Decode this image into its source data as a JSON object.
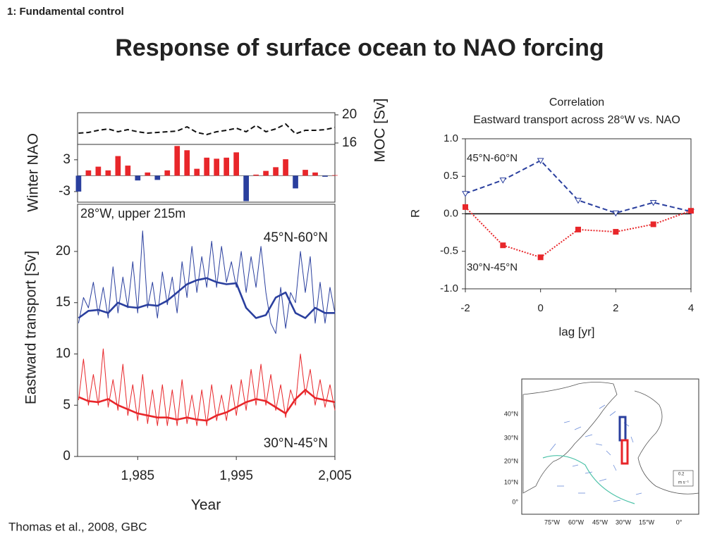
{
  "header": {
    "section": "1: Fundamental control",
    "title": "Response of surface ocean to NAO forcing"
  },
  "citation": "Thomas et al., 2008, GBC",
  "chart_data": [
    {
      "type": "line",
      "y_label": "MOC [Sv]",
      "x": [
        1979,
        1980,
        1981,
        1982,
        1983,
        1984,
        1985,
        1986,
        1987,
        1988,
        1989,
        1990,
        1991,
        1992,
        1993,
        1994,
        1995,
        1996,
        1997,
        1998,
        1999,
        2000,
        2001,
        2002,
        2003,
        2004,
        2005
      ],
      "xlim": [
        1978.9,
        2005
      ],
      "ylim": [
        15.8,
        20.3
      ],
      "yticks": [
        16,
        20
      ],
      "series": [
        {
          "color": "#111111",
          "dash": true,
          "values": [
            17.4,
            17.5,
            17.8,
            18.0,
            17.6,
            17.9,
            17.6,
            17.4,
            17.5,
            17.6,
            17.7,
            18.3,
            17.5,
            17.2,
            17.6,
            17.8,
            18.1,
            17.6,
            18.5,
            17.6,
            18.0,
            18.7,
            17.3,
            17.8,
            17.8,
            17.9,
            18.2
          ]
        }
      ]
    },
    {
      "type": "bar",
      "y_label": "Winter NAO",
      "x": [
        1979,
        1980,
        1981,
        1982,
        1983,
        1984,
        1985,
        1986,
        1987,
        1988,
        1989,
        1990,
        1991,
        1992,
        1993,
        1994,
        1995,
        1996,
        1997,
        1998,
        1999,
        2000,
        2001,
        2002,
        2003,
        2004,
        2005
      ],
      "values": [
        -3.0,
        1.0,
        1.7,
        1.0,
        3.7,
        1.9,
        -0.9,
        0.6,
        -0.8,
        1.0,
        5.6,
        4.8,
        1.3,
        3.4,
        3.2,
        3.4,
        4.4,
        -4.8,
        0.2,
        0.9,
        1.6,
        3.1,
        -2.4,
        1.1,
        0.6,
        -0.2,
        0.1
      ],
      "positive_color": "#e8262a",
      "negative_color": "#2a3f9e",
      "xlim": [
        1978.9,
        2005
      ],
      "ylim": [
        -5,
        5.9
      ],
      "yticks": [
        3,
        -3
      ]
    },
    {
      "type": "line",
      "y_label": "Eastward transport [Sv]",
      "x_label": "Year",
      "annotation": "28°W, upper 215m",
      "xlim": [
        1978.9,
        2005
      ],
      "ylim": [
        0,
        24.6
      ],
      "xticks": [
        {
          "value": 1985,
          "label": "1,985"
        },
        {
          "value": 1995,
          "label": "1,995"
        },
        {
          "value": 2005,
          "label": "2,005"
        }
      ],
      "yticks": [
        0,
        5,
        10,
        15,
        20
      ],
      "series": [
        {
          "color": "#2a3f9e",
          "width": 1,
          "x": [
            1979,
            1979.5,
            1980,
            1980.5,
            1981,
            1981.5,
            1982,
            1982.5,
            1983,
            1983.5,
            1984,
            1984.5,
            1985,
            1985.5,
            1986,
            1986.5,
            1987,
            1987.5,
            1988,
            1988.5,
            1989,
            1989.5,
            1990,
            1990.5,
            1991,
            1991.5,
            1992,
            1992.5,
            1993,
            1993.5,
            1994,
            1994.5,
            1995,
            1995.5,
            1996,
            1996.5,
            1997,
            1997.5,
            1998,
            1998.5,
            1999,
            1999.5,
            2000,
            2000.5,
            2001,
            2001.5,
            2002,
            2002.5,
            2003,
            2003.5,
            2004,
            2004.5,
            2005
          ],
          "values": [
            13.0,
            15.5,
            14.5,
            17.0,
            13.8,
            16.5,
            13.5,
            18.5,
            14.0,
            17.5,
            14.5,
            19.0,
            14.0,
            22.0,
            14.5,
            17.0,
            13.5,
            18.0,
            14.8,
            17.5,
            14.0,
            19.0,
            15.5,
            20.5,
            16.0,
            19.5,
            16.5,
            21.0,
            16.5,
            20.5,
            17.0,
            19.0,
            16.5,
            20.0,
            16.0,
            19.5,
            16.5,
            20.5,
            16.0,
            13.0,
            12.0,
            16.5,
            12.5,
            16.0,
            15.0,
            20.0,
            16.0,
            19.5,
            13.0,
            17.0,
            13.0,
            16.5,
            14.0
          ]
        },
        {
          "name": "45°N-60°N",
          "color": "#2a3f9e",
          "width": 2.6,
          "x": [
            1979,
            1980,
            1981,
            1982,
            1983,
            1984,
            1985,
            1986,
            1987,
            1988,
            1989,
            1990,
            1991,
            1992,
            1993,
            1994,
            1995,
            1996,
            1997,
            1998,
            1999,
            2000,
            2001,
            2002,
            2003,
            2004,
            2005
          ],
          "values": [
            13.5,
            14.2,
            14.3,
            14.0,
            15.0,
            14.6,
            14.5,
            14.8,
            14.7,
            15.2,
            16.0,
            16.8,
            17.2,
            17.4,
            17.0,
            16.8,
            16.9,
            14.5,
            13.5,
            13.8,
            15.5,
            16.0,
            14.0,
            13.5,
            14.5,
            14.0,
            14.0
          ]
        },
        {
          "color": "#e8262a",
          "width": 1,
          "x": [
            1979,
            1979.5,
            1980,
            1980.5,
            1981,
            1981.5,
            1982,
            1982.5,
            1983,
            1983.5,
            1984,
            1984.5,
            1985,
            1985.5,
            1986,
            1986.5,
            1987,
            1987.5,
            1988,
            1988.5,
            1989,
            1989.5,
            1990,
            1990.5,
            1991,
            1991.5,
            1992,
            1992.5,
            1993,
            1993.5,
            1994,
            1994.5,
            1995,
            1995.5,
            1996,
            1996.5,
            1997,
            1997.5,
            1998,
            1998.5,
            1999,
            1999.5,
            2000,
            2000.5,
            2001,
            2001.5,
            2002,
            2002.5,
            2003,
            2003.5,
            2004,
            2004.5,
            2005
          ],
          "values": [
            5.5,
            9.5,
            5.0,
            8.0,
            5.0,
            10.5,
            4.8,
            7.5,
            4.5,
            9.0,
            4.0,
            7.0,
            3.5,
            8.0,
            3.2,
            6.5,
            3.0,
            7.0,
            3.0,
            6.5,
            3.0,
            7.5,
            3.2,
            6.0,
            3.0,
            6.5,
            3.0,
            7.0,
            3.5,
            6.0,
            3.5,
            7.0,
            4.0,
            7.5,
            4.5,
            8.5,
            5.0,
            9.0,
            5.0,
            8.0,
            4.5,
            7.0,
            3.8,
            6.5,
            5.0,
            10.0,
            6.0,
            8.5,
            5.0,
            7.5,
            4.8,
            7.0,
            4.5
          ]
        },
        {
          "name": "30°N-45°N",
          "color": "#e8262a",
          "width": 2.6,
          "x": [
            1979,
            1980,
            1981,
            1982,
            1983,
            1984,
            1985,
            1986,
            1987,
            1988,
            1989,
            1990,
            1991,
            1992,
            1993,
            1994,
            1995,
            1996,
            1997,
            1998,
            1999,
            2000,
            2001,
            2002,
            2003,
            2004,
            2005
          ],
          "values": [
            5.8,
            5.4,
            5.3,
            5.6,
            5.0,
            4.6,
            4.2,
            4.0,
            3.8,
            3.8,
            3.6,
            3.8,
            3.6,
            3.5,
            4.0,
            4.3,
            4.8,
            5.3,
            5.6,
            5.4,
            4.8,
            4.2,
            5.6,
            6.5,
            5.7,
            5.5,
            5.3
          ]
        }
      ]
    },
    {
      "type": "line",
      "title": "Correlation",
      "subtitle": "Eastward transport across 28°W vs. NAO",
      "x_label": "lag [yr]",
      "y_label": "R",
      "x": [
        -2,
        -1,
        0,
        1,
        2,
        3,
        4
      ],
      "xlim": [
        -2,
        4
      ],
      "xticks": [
        -2,
        0,
        2,
        4
      ],
      "ylim": [
        -1,
        1
      ],
      "yticks": [
        {
          "value": 1,
          "label": "1.0"
        },
        0.5,
        {
          "value": 0,
          "label": "0.0"
        },
        -0.5,
        {
          "value": -1,
          "label": "-1.0"
        }
      ],
      "series": [
        {
          "name": "45°N-60°N",
          "color": "#2a3f9e",
          "dash": true,
          "marker": "triangle",
          "values": [
            0.27,
            0.45,
            0.71,
            0.18,
            0.01,
            0.15,
            0.03
          ]
        },
        {
          "name": "30°N-45°N",
          "color": "#e8262a",
          "dotted": true,
          "marker": "square",
          "values": [
            0.09,
            -0.42,
            -0.58,
            -0.21,
            -0.24,
            -0.14,
            0.04
          ]
        }
      ]
    }
  ],
  "map": {
    "lat_labels": [
      "40°N",
      "30°N",
      "20°N",
      "10°N",
      "0°"
    ],
    "lon_labels": [
      "75°W",
      "60°W",
      "45°W",
      "30°W",
      "15°W",
      "0°"
    ],
    "scale_value": "0.2",
    "scale_unit": "m s⁻¹"
  }
}
